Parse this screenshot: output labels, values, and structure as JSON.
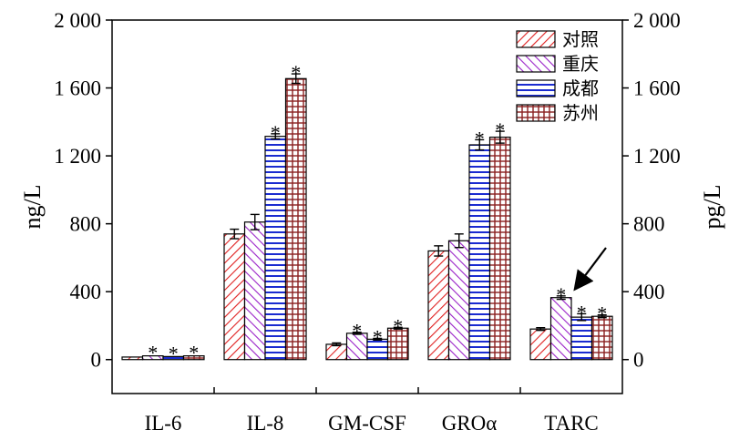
{
  "chart_data": {
    "type": "bar",
    "categories": [
      "IL-6",
      "IL-8",
      "GM-CSF",
      "GROα",
      "TARC"
    ],
    "series": [
      {
        "name": "对照",
        "pattern": "diag-right",
        "color": "#e02020",
        "values": [
          15,
          740,
          90,
          640,
          180
        ],
        "errors": [
          0,
          28,
          8,
          30,
          8
        ],
        "significant": [
          false,
          false,
          false,
          false,
          false
        ]
      },
      {
        "name": "重庆",
        "pattern": "diag-left",
        "color": "#9a22c8",
        "values": [
          22,
          810,
          155,
          700,
          365
        ],
        "errors": [
          0,
          45,
          6,
          40,
          10
        ],
        "significant": [
          true,
          false,
          true,
          false,
          true
        ]
      },
      {
        "name": "成都",
        "pattern": "horizontal",
        "color": "#1a2bd0",
        "values": [
          18,
          1315,
          120,
          1265,
          250
        ],
        "errors": [
          0,
          15,
          5,
          30,
          20
        ],
        "significant": [
          true,
          true,
          true,
          true,
          true
        ]
      },
      {
        "name": "苏州",
        "pattern": "grid",
        "color": "#8a1f1f",
        "values": [
          22,
          1655,
          185,
          1310,
          255
        ],
        "errors": [
          0,
          28,
          5,
          35,
          8
        ],
        "significant": [
          true,
          true,
          true,
          true,
          true
        ]
      }
    ],
    "significance_marker": "*",
    "title": "",
    "xlabel": "",
    "ylabel_left": "ng/L",
    "ylabel_right": "pg/L",
    "ylim": [
      -200,
      2000
    ],
    "yticks": [
      0,
      400,
      800,
      1200,
      1600,
      2000
    ],
    "ytick_labels": [
      "0",
      "400",
      "800",
      "1 200",
      "1 600",
      "2 000"
    ],
    "legend_position": "top-right",
    "annotation": "arrow pointing to TARC 重庆 bar"
  }
}
